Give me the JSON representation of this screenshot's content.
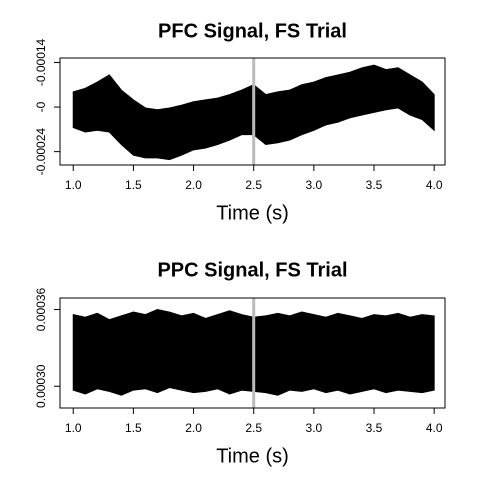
{
  "chart_data": [
    {
      "type": "band",
      "title": "PFC Signal, FS Trial",
      "xlabel": "Time (s)",
      "x": [
        1.0,
        1.1,
        1.2,
        1.3,
        1.4,
        1.5,
        1.6,
        1.7,
        1.8,
        1.9,
        2.0,
        2.1,
        2.2,
        2.3,
        2.4,
        2.5,
        2.6,
        2.7,
        2.8,
        2.9,
        3.0,
        3.1,
        3.2,
        3.3,
        3.4,
        3.5,
        3.6,
        3.7,
        3.8,
        3.9,
        4.0
      ],
      "upper": [
        -0.000173,
        -0.000169,
        -0.000162,
        -0.000154,
        -0.000171,
        -0.000182,
        -0.000191,
        -0.000193,
        -0.000191,
        -0.000188,
        -0.000184,
        -0.000182,
        -0.00018,
        -0.000176,
        -0.000171,
        -0.000165,
        -0.000176,
        -0.000173,
        -0.000171,
        -0.000165,
        -0.000162,
        -0.000157,
        -0.000154,
        -0.000151,
        -0.000146,
        -0.000143,
        -0.000148,
        -0.000146,
        -0.000154,
        -0.000162,
        -0.000176
      ],
      "lower": [
        -0.000213,
        -0.000218,
        -0.000216,
        -0.000218,
        -0.000232,
        -0.000244,
        -0.000247,
        -0.000247,
        -0.000249,
        -0.000244,
        -0.000238,
        -0.000236,
        -0.000232,
        -0.000227,
        -0.000221,
        -0.000221,
        -0.000232,
        -0.00023,
        -0.000227,
        -0.000221,
        -0.000216,
        -0.00021,
        -0.000207,
        -0.000202,
        -0.000199,
        -0.000196,
        -0.000193,
        -0.000191,
        -0.000199,
        -0.000204,
        -0.000216
      ],
      "color": "#000000",
      "vline": 2.5,
      "vline_color": "#bbbbbb",
      "xlim": [
        0.89,
        4.09
      ],
      "ylim": [
        -0.000255,
        -0.000135
      ],
      "xticks": [
        {
          "value": 1,
          "label": "1.0"
        },
        1.5,
        {
          "value": 2,
          "label": "2.0"
        },
        2.5,
        {
          "value": 3,
          "label": "3.0"
        },
        3.5,
        {
          "value": 4,
          "label": "4.0"
        }
      ],
      "yticks": [
        -0.00014,
        {
          "value": -0.00019,
          "label": "-0"
        },
        -0.00024
      ]
    },
    {
      "type": "band",
      "title": "PPC Signal, FS Trial",
      "xlabel": "Time (s)",
      "x": [
        1.0,
        1.1,
        1.2,
        1.3,
        1.4,
        1.5,
        1.6,
        1.7,
        1.8,
        1.9,
        2.0,
        2.1,
        2.2,
        2.3,
        2.4,
        2.5,
        2.6,
        2.7,
        2.8,
        2.9,
        3.0,
        3.1,
        3.2,
        3.3,
        3.4,
        3.5,
        3.6,
        3.7,
        3.8,
        3.9,
        4.0
      ],
      "upper": [
        0.000356,
        0.000354,
        0.000357,
        0.000352,
        0.000355,
        0.000358,
        0.000356,
        0.00036,
        0.000358,
        0.000355,
        0.000357,
        0.000353,
        0.000356,
        0.000359,
        0.000356,
        0.000354,
        0.000355,
        0.000357,
        0.000355,
        0.000358,
        0.000356,
        0.000354,
        0.000357,
        0.000355,
        0.000353,
        0.000356,
        0.000355,
        0.000357,
        0.000354,
        0.000356,
        0.000355
      ],
      "lower": [
        0.000297,
        0.000294,
        0.000298,
        0.000296,
        0.000293,
        0.000297,
        0.000298,
        0.000295,
        0.000299,
        0.000297,
        0.000295,
        0.000296,
        0.000298,
        0.000294,
        0.000297,
        0.000296,
        0.000295,
        0.000293,
        0.000297,
        0.000296,
        0.000298,
        0.000295,
        0.000297,
        0.000294,
        0.000296,
        0.000298,
        0.000295,
        0.000297,
        0.000296,
        0.000295,
        0.000297
      ],
      "color": "#000000",
      "vline": 2.5,
      "vline_color": "#bbbbbb",
      "xlim": [
        0.89,
        4.09
      ],
      "ylim": [
        0.000283,
        0.000369
      ],
      "xticks": [
        {
          "value": 1,
          "label": "1.0"
        },
        1.5,
        {
          "value": 2,
          "label": "2.0"
        },
        2.5,
        {
          "value": 3,
          "label": "3.0"
        },
        3.5,
        {
          "value": 4,
          "label": "4.0"
        }
      ],
      "yticks": [
        {
          "value": 0.0003,
          "label": "0.00030"
        },
        0.00036
      ]
    }
  ]
}
